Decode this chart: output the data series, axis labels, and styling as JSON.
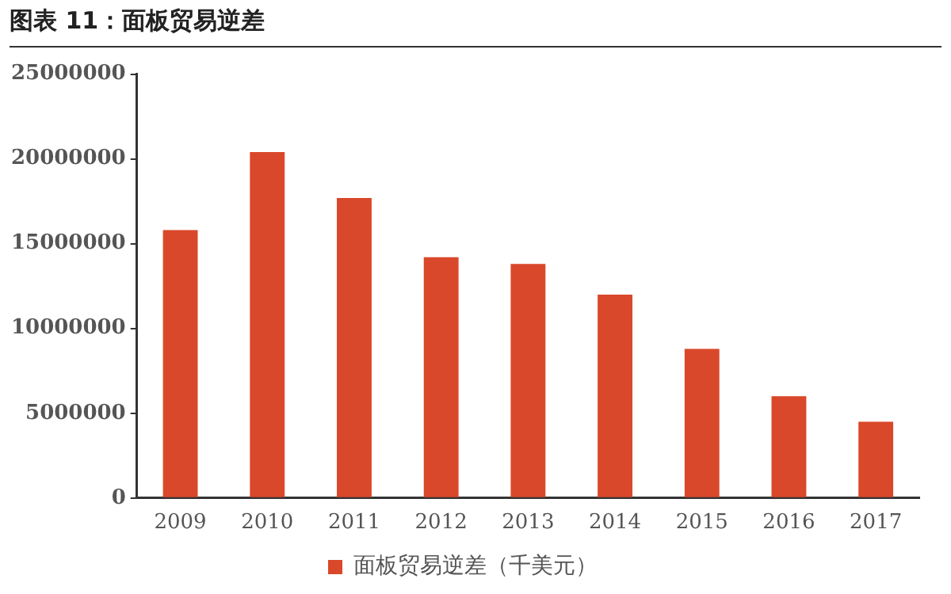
{
  "chart_data": {
    "type": "bar",
    "title": "图表 11：面板贸易逆差",
    "categories": [
      "2009",
      "2010",
      "2011",
      "2012",
      "2013",
      "2014",
      "2015",
      "2016",
      "2017"
    ],
    "series": [
      {
        "name": "面板贸易逆差（千美元）",
        "color": "#d9482a",
        "values": [
          15800000,
          20400000,
          17700000,
          14200000,
          13800000,
          12000000,
          8800000,
          6000000,
          4500000
        ]
      }
    ],
    "ylim": [
      0,
      25000000
    ],
    "yticks": [
      0,
      5000000,
      10000000,
      15000000,
      20000000,
      25000000
    ],
    "grid": false,
    "legend": "bottom"
  }
}
